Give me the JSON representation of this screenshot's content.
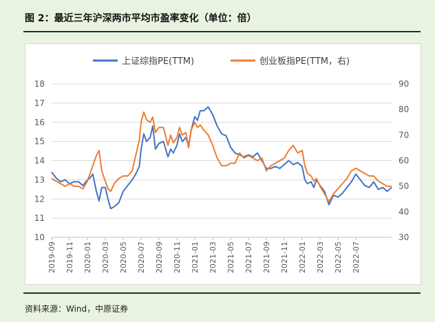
{
  "figure": {
    "title": "图 2：最近三年沪深两市平均市盈率变化（单位：倍）",
    "source": "资料来源：Wind，中原证券"
  },
  "colors": {
    "series_left": "#4472c4",
    "series_right": "#ed7d31",
    "grid": "#d9d9d9",
    "text": "#595959"
  },
  "chart_data": {
    "type": "line",
    "title": "",
    "legend_position": "top",
    "y_left": {
      "label": "",
      "min": 10,
      "max": 18,
      "ticks": [
        10,
        11,
        12,
        13,
        14,
        15,
        16,
        17,
        18
      ]
    },
    "y_right": {
      "label": "",
      "min": 30,
      "max": 90,
      "ticks": [
        30,
        40,
        50,
        60,
        70,
        80,
        90
      ]
    },
    "x_ticks": [
      "2019-09",
      "2019-11",
      "2020-01",
      "2020-03",
      "2020-05",
      "2020-07",
      "2020-09",
      "2020-11",
      "2021-01",
      "2021-03",
      "2021-05",
      "2021-07",
      "2021-09",
      "2021-11",
      "2022-01",
      "2022-03",
      "2022-05",
      "2022-07"
    ],
    "x_range_months": [
      0,
      38
    ],
    "series": [
      {
        "name": "上证综指PE(TTM)",
        "axis": "left",
        "x": [
          0,
          0.5,
          1,
          1.5,
          2,
          2.5,
          3,
          3.5,
          4,
          4.3,
          4.6,
          5,
          5.3,
          5.6,
          6,
          6.3,
          6.6,
          7,
          7.5,
          8,
          8.5,
          9,
          9.4,
          9.8,
          10,
          10.3,
          10.6,
          11,
          11.3,
          11.6,
          12,
          12.5,
          13,
          13.3,
          13.6,
          14,
          14.3,
          14.6,
          15,
          15.3,
          15.6,
          16,
          16.3,
          16.6,
          17,
          17.5,
          18,
          18.5,
          19,
          19.5,
          20,
          20.5,
          21,
          21.5,
          22,
          22.5,
          23,
          23.5,
          24,
          24.5,
          25,
          25.5,
          26,
          26.5,
          27,
          27.5,
          28,
          28.3,
          28.6,
          29,
          29.3,
          29.6,
          30,
          30.5,
          31,
          31.5,
          32,
          32.5,
          33,
          33.5,
          34,
          34.5,
          35,
          35.5,
          36,
          36.5,
          37,
          37.5,
          38
        ],
        "values": [
          13.4,
          13.1,
          12.9,
          13.0,
          12.8,
          12.9,
          12.9,
          12.7,
          13.0,
          13.1,
          13.3,
          12.4,
          11.9,
          12.6,
          12.6,
          12.0,
          11.5,
          11.6,
          11.8,
          12.4,
          12.7,
          13.0,
          13.3,
          13.7,
          14.6,
          15.4,
          15.0,
          15.2,
          15.8,
          14.6,
          14.9,
          15.0,
          14.2,
          14.6,
          14.4,
          14.8,
          15.4,
          15.0,
          15.2,
          14.8,
          15.6,
          16.3,
          16.1,
          16.6,
          16.6,
          16.8,
          16.4,
          15.8,
          15.4,
          15.3,
          14.7,
          14.4,
          14.3,
          14.2,
          14.3,
          14.2,
          14.4,
          14.0,
          13.6,
          13.6,
          13.7,
          13.6,
          13.8,
          14.0,
          13.8,
          13.9,
          13.7,
          13.0,
          12.8,
          12.9,
          12.6,
          13.0,
          12.7,
          12.4,
          11.7,
          12.2,
          12.1,
          12.3,
          12.6,
          12.9,
          13.3,
          13.0,
          12.7,
          12.6,
          12.9,
          12.5,
          12.6,
          12.4,
          12.6
        ]
      },
      {
        "name": "创业板指PE(TTM，右)",
        "axis": "right",
        "x": [
          0,
          0.5,
          1,
          1.5,
          2,
          2.5,
          3,
          3.5,
          4,
          4.3,
          4.6,
          5,
          5.3,
          5.6,
          6,
          6.3,
          6.6,
          7,
          7.5,
          8,
          8.5,
          9,
          9.4,
          9.8,
          10,
          10.3,
          10.6,
          11,
          11.3,
          11.6,
          12,
          12.5,
          13,
          13.3,
          13.6,
          14,
          14.3,
          14.6,
          15,
          15.3,
          15.6,
          16,
          16.3,
          16.6,
          17,
          17.5,
          18,
          18.5,
          19,
          19.5,
          20,
          20.5,
          21,
          21.5,
          22,
          22.5,
          23,
          23.5,
          24,
          24.5,
          25,
          25.5,
          26,
          26.5,
          27,
          27.5,
          28,
          28.3,
          28.6,
          29,
          29.3,
          29.6,
          30,
          30.5,
          31,
          31.5,
          32,
          32.5,
          33,
          33.5,
          34,
          34.5,
          35,
          35.5,
          36,
          36.5,
          37,
          37.5,
          38
        ],
        "values": [
          53,
          52,
          51,
          50,
          51,
          50,
          50,
          49,
          52,
          55,
          58,
          62,
          64,
          56,
          52,
          49,
          48,
          51,
          53,
          54,
          54,
          56,
          62,
          68,
          75,
          79,
          76,
          75,
          77,
          71,
          73,
          73,
          66,
          70,
          67,
          69,
          73,
          70,
          71,
          65,
          72,
          75,
          73,
          74,
          72,
          70,
          66,
          61,
          58,
          58,
          59,
          59,
          63,
          61,
          62,
          61,
          60,
          61,
          56,
          58,
          59,
          60,
          61,
          64,
          66,
          63,
          64,
          58,
          55,
          54,
          52,
          53,
          50,
          47,
          44,
          47,
          49,
          51,
          53,
          56,
          57,
          56,
          55,
          54,
          54,
          52,
          51,
          50,
          50
        ]
      }
    ]
  }
}
